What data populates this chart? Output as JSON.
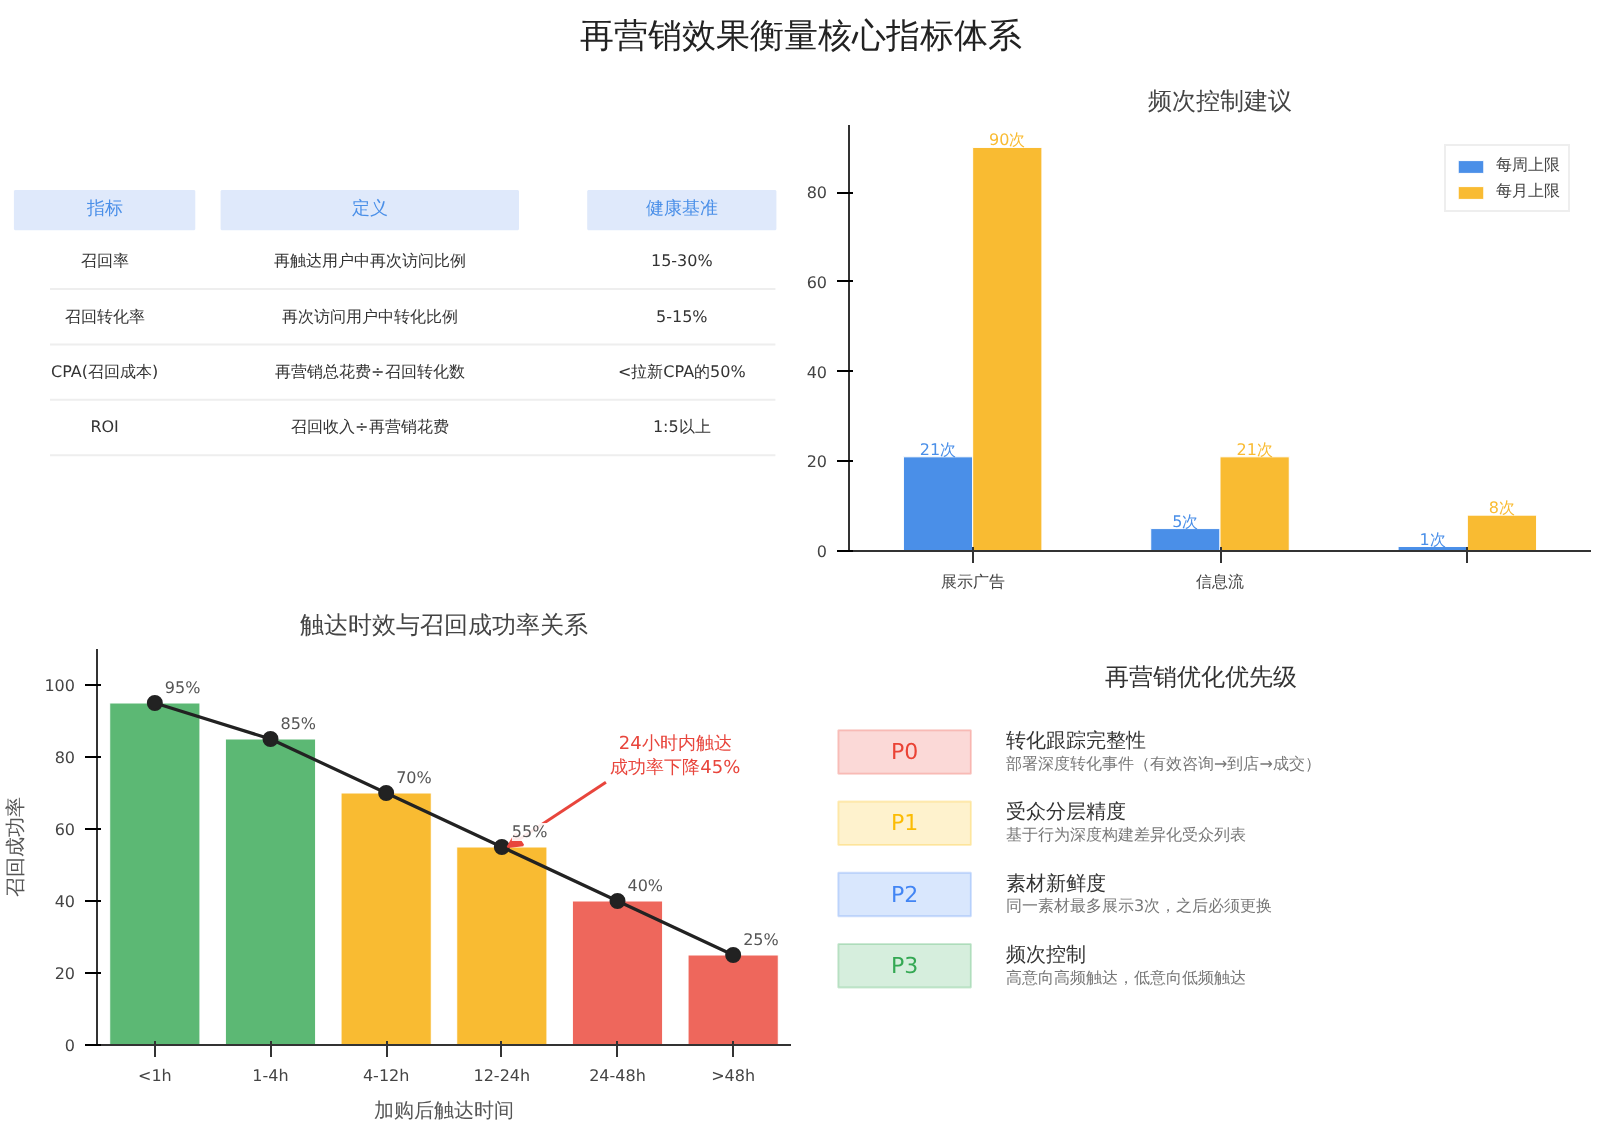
{
  "chart_data": [
    {
      "type": "other",
      "title": "再营销效果衡量核心指标体系"
    },
    {
      "type": "other",
      "categories": [
        "指标",
        "定义",
        "健康基准"
      ],
      "colors": [
        "#dfe9fb"
      ],
      "cell_labels": [
        [
          "召回率",
          "再触达用户中再次访问比例",
          "15-30%"
        ],
        [
          "召回转化率",
          "再次访问用户中转化比例",
          "5-15%"
        ],
        [
          "CPA(召回成本)",
          "再营销总花费÷召回转化数",
          "<拉新CPA的50%"
        ],
        [
          "ROI",
          "召回收入÷再营销花费",
          "1:5以上"
        ]
      ]
    },
    {
      "type": "bar",
      "title": "频次控制建议",
      "categories": [
        "展示广告",
        "信息流",
        null
      ],
      "series": [
        {
          "name": "每周上限",
          "color": "#4a8fe8",
          "values": [
            21,
            5,
            1
          ],
          "value_labels": [
            "21次",
            "5次",
            "1次"
          ]
        },
        {
          "name": "每月上限",
          "color": "#f9bb32",
          "values": [
            90,
            21,
            8
          ],
          "value_labels": [
            "90次",
            "21次",
            "8次"
          ]
        }
      ],
      "ylim": [
        0,
        95
      ],
      "yticks": [
        0,
        20,
        40,
        60,
        80
      ],
      "legend": "top right",
      "grid": false
    },
    {
      "type": "bar",
      "title": "触达时效与召回成功率关系",
      "xlabel": "加购后触达时间",
      "ylabel": "召回成功率",
      "categories": [
        "<1h",
        "1-4h",
        "4-12h",
        "12-24h",
        "24-48h",
        ">48h"
      ],
      "series": [
        {
          "type": "bar",
          "colors": [
            "#5cb874",
            "#5cb874",
            "#f9bb32",
            "#f9bb32",
            "#ee675c",
            "#ee675c"
          ],
          "values": [
            95,
            85,
            70,
            55,
            40,
            25
          ],
          "value_labels": [
            "95%",
            "85%",
            "70%",
            "55%",
            "40%",
            "25%"
          ]
        },
        {
          "type": "line",
          "color": "#222222",
          "values": [
            95,
            85,
            70,
            55,
            40,
            25
          ],
          "marker": "circle"
        }
      ],
      "ylim": [
        0,
        110
      ],
      "yticks": [
        0,
        20,
        40,
        60,
        80,
        100
      ],
      "grid": false,
      "annotations": [
        {
          "text": "24小时内触达成功率下降45%",
          "x": "12-24h",
          "y": 55
        }
      ]
    },
    {
      "type": "other",
      "title": "再营销优化优先级",
      "categories": [
        "P0",
        "P1",
        "P2",
        "P3"
      ],
      "colors": [
        "#ea4335",
        "#fbbc04",
        "#4285f4",
        "#34a853"
      ],
      "cell_labels": [
        [
          "转化跟踪完整性",
          "部署深度转化事件（有效咨询→到店→成交）"
        ],
        [
          "受众分层精度",
          "基于行为深度构建差异化受众列表"
        ],
        [
          "素材新鲜度",
          "同一素材最多展示3次，之后必须更换"
        ],
        [
          "频次控制",
          "高意向高频触达，低意向低频触达"
        ]
      ]
    }
  ]
}
